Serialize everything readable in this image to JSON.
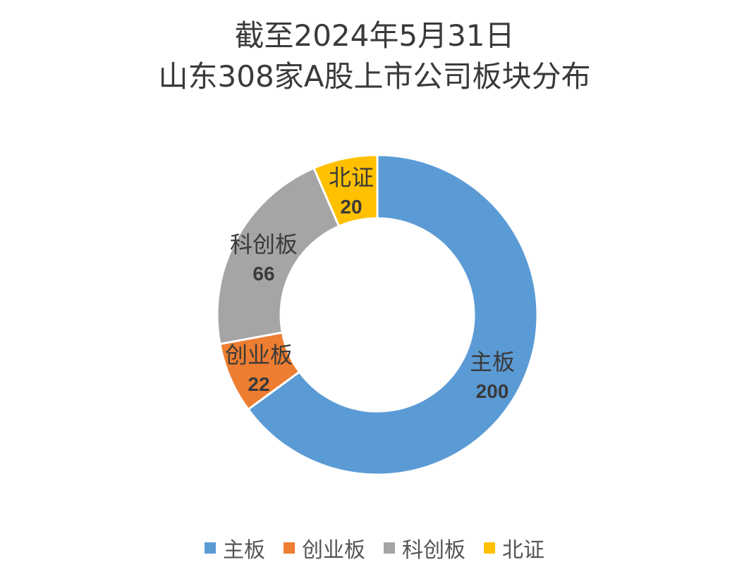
{
  "title": {
    "line1": "截至2024年5月31日",
    "line2": "山东308家A股上市公司板块分布"
  },
  "chart_data": {
    "type": "pie",
    "variant": "donut",
    "categories": [
      "主板",
      "创业板",
      "科创板",
      "北证"
    ],
    "values": [
      200,
      22,
      66,
      20
    ],
    "colors": [
      "#5B9BD5",
      "#ED7D31",
      "#A5A5A5",
      "#FFC000"
    ],
    "legend_position": "bottom"
  }
}
